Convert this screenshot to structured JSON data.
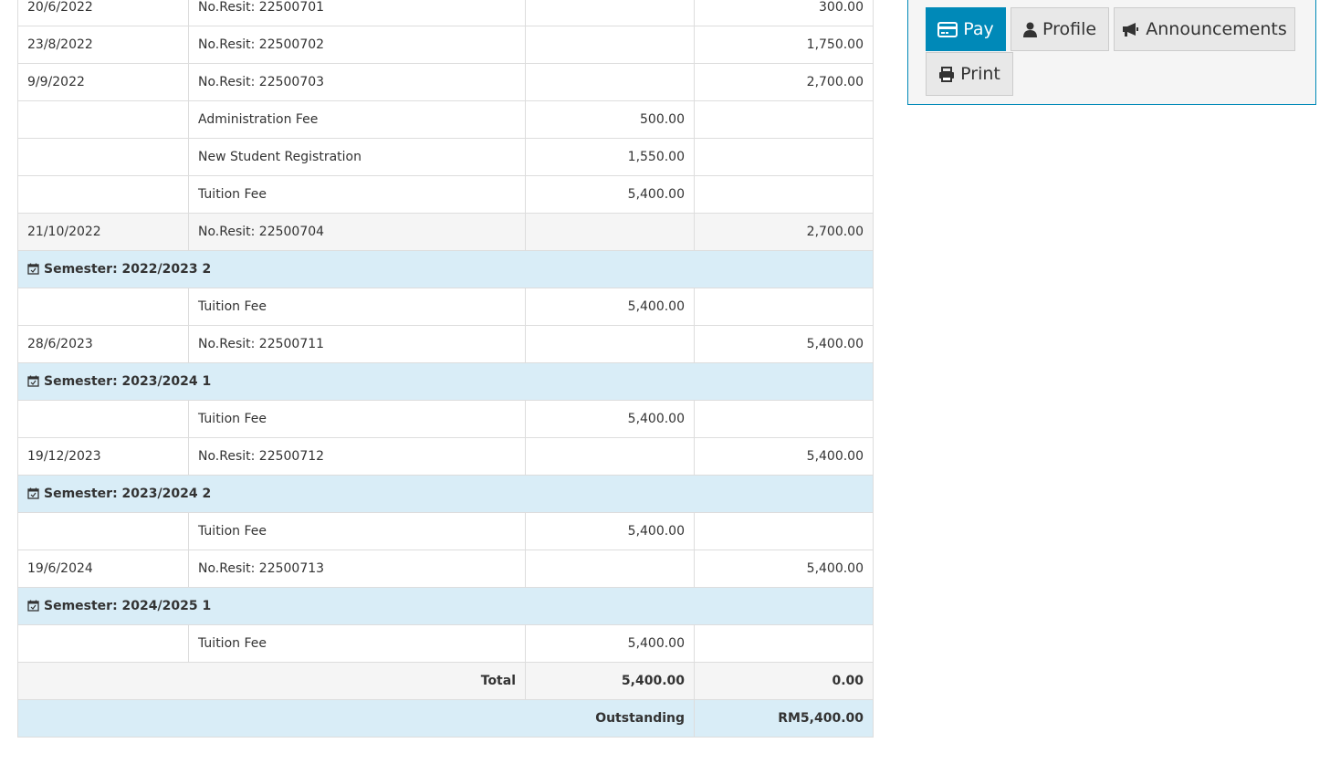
{
  "ledger": {
    "rows": [
      {
        "type": "row",
        "date": "20/6/2022",
        "desc": "No.Resit: 22500701",
        "debit": "",
        "credit": "300.00"
      },
      {
        "type": "row",
        "date": "23/8/2022",
        "desc": "No.Resit: 22500702",
        "debit": "",
        "credit": "1,750.00"
      },
      {
        "type": "row",
        "date": "9/9/2022",
        "desc": "No.Resit: 22500703",
        "debit": "",
        "credit": "2,700.00"
      },
      {
        "type": "row",
        "date": "",
        "desc": "Administration Fee",
        "debit": "500.00",
        "credit": ""
      },
      {
        "type": "row",
        "date": "",
        "desc": "New Student Registration",
        "debit": "1,550.00",
        "credit": ""
      },
      {
        "type": "row",
        "date": "",
        "desc": "Tuition Fee",
        "debit": "5,400.00",
        "credit": ""
      },
      {
        "type": "alt",
        "date": "21/10/2022",
        "desc": "No.Resit: 22500704",
        "debit": "",
        "credit": "2,700.00"
      },
      {
        "type": "sem",
        "label": "Semester: 2022/2023 2"
      },
      {
        "type": "row",
        "date": "",
        "desc": "Tuition Fee",
        "debit": "5,400.00",
        "credit": ""
      },
      {
        "type": "row",
        "date": "28/6/2023",
        "desc": "No.Resit: 22500711",
        "debit": "",
        "credit": "5,400.00"
      },
      {
        "type": "sem",
        "label": "Semester: 2023/2024 1"
      },
      {
        "type": "row",
        "date": "",
        "desc": "Tuition Fee",
        "debit": "5,400.00",
        "credit": ""
      },
      {
        "type": "row",
        "date": "19/12/2023",
        "desc": "No.Resit: 22500712",
        "debit": "",
        "credit": "5,400.00"
      },
      {
        "type": "sem",
        "label": "Semester: 2023/2024 2"
      },
      {
        "type": "row",
        "date": "",
        "desc": "Tuition Fee",
        "debit": "5,400.00",
        "credit": ""
      },
      {
        "type": "row",
        "date": "19/6/2024",
        "desc": "No.Resit: 22500713",
        "debit": "",
        "credit": "5,400.00"
      },
      {
        "type": "sem",
        "label": "Semester: 2024/2025 1"
      },
      {
        "type": "row",
        "date": "",
        "desc": "Tuition Fee",
        "debit": "5,400.00",
        "credit": ""
      }
    ],
    "total": {
      "label": "Total",
      "debit": "5,400.00",
      "credit": "0.00"
    },
    "outstanding": {
      "label": "Outstanding",
      "amount": "RM5,400.00"
    }
  },
  "actions": {
    "pay": "Pay",
    "profile": "Profile",
    "announcements": "Announcements",
    "print": "Print",
    "accent": "#0089b8"
  }
}
